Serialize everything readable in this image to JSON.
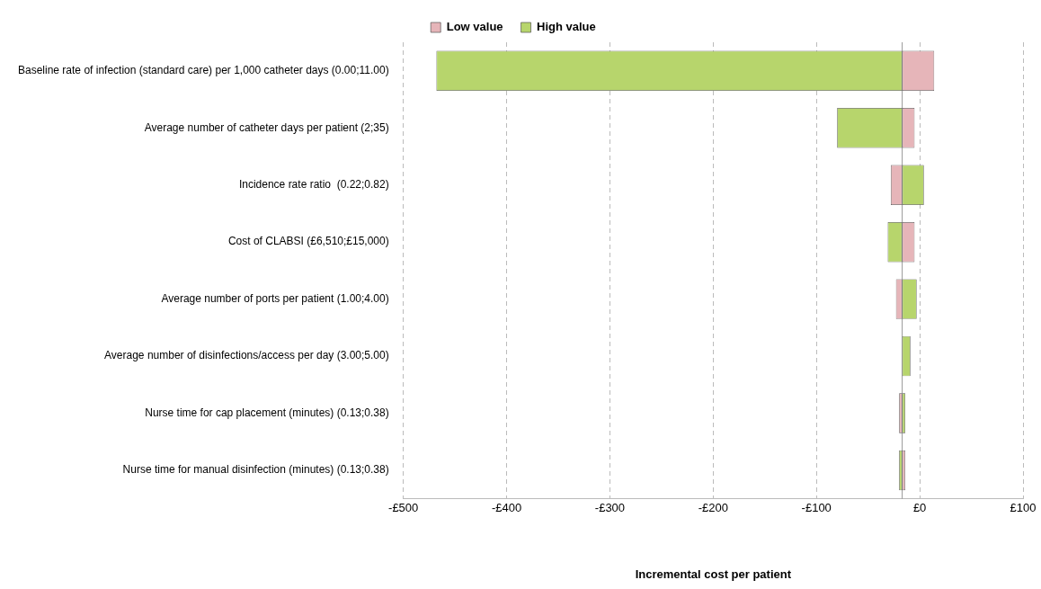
{
  "chart_data": {
    "type": "bar",
    "orientation": "horizontal",
    "stacked": false,
    "categories": [
      "Baseline rate of infection (standard care) per 1,000 catheter days (0.00;11.00)",
      "Average number of catheter days per patient (2;35)",
      "Incidence rate ratio  (0.22;0.82)",
      "Cost of CLABSI (£6,510;£15,000)",
      "Average number of ports per patient (1.00;4.00)",
      "Average number of disinfections/access per day (3.00;5.00)",
      "Nurse time for cap placement (minutes) (0.13;0.38)",
      "Nurse time for manual disinfection (minutes) (0.13;0.38)"
    ],
    "series": [
      {
        "name": "Low value",
        "color": "#e6b5b9",
        "base": [
          -17,
          -17,
          -28,
          -17,
          -23,
          null,
          -20,
          -17
        ],
        "values": [
          31,
          12,
          11,
          12,
          6,
          null,
          3,
          3
        ]
      },
      {
        "name": "High value",
        "color": "#b7d56c",
        "base": [
          -468,
          -80,
          -17,
          -31,
          -17,
          -17,
          -17,
          -20
        ],
        "values": [
          451,
          63,
          21,
          14,
          14,
          8,
          3,
          3
        ]
      }
    ],
    "xlim": [
      -500,
      100
    ],
    "xticks": [
      {
        "value": -500,
        "label": "-£500"
      },
      {
        "value": -400,
        "label": "-£400"
      },
      {
        "value": -300,
        "label": "-£300"
      },
      {
        "value": -200,
        "label": "-£200"
      },
      {
        "value": -100,
        "label": "-£100"
      },
      {
        "value": 0,
        "label": "£0"
      },
      {
        "value": 100,
        "label": "£100"
      }
    ],
    "xlabel": "Incremental cost per patient",
    "ref_lines": [
      {
        "axis": "x",
        "value": -17,
        "color": "#999999"
      }
    ],
    "grid": "x",
    "legend": "top"
  }
}
